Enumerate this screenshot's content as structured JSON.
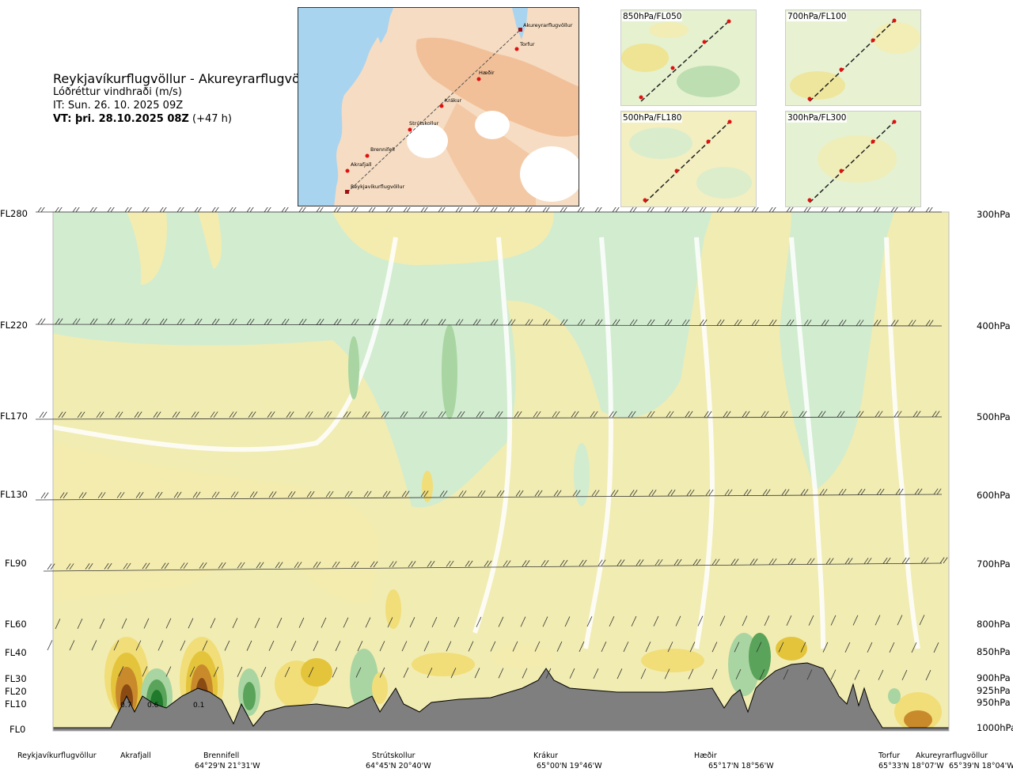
{
  "header": {
    "title": "Reykjavíkurflugvöllur - Akureyrarflugvöllur",
    "subtitle": "Lóðréttur vindhraði (m/s)",
    "issue_time": "IT: Sun. 26. 10. 2025 09Z",
    "valid_time_bold": "VT: þri. 28.10.2025 08Z",
    "valid_time_offset": "(+47 h)"
  },
  "route_map": {
    "places": [
      {
        "name": "Akureyrarflugvöllur",
        "lat": 65.66,
        "lon": -18.07
      },
      {
        "name": "Torfur",
        "lat": 65.55,
        "lon": -18.13
      },
      {
        "name": "Hæðir",
        "lat": 65.29,
        "lon": -18.93
      },
      {
        "name": "Krákur",
        "lat": 65.0,
        "lon": -19.77
      },
      {
        "name": "Strútskollur",
        "lat": 64.75,
        "lon": -20.67
      },
      {
        "name": "Brennifell",
        "lat": 64.49,
        "lon": -21.52
      },
      {
        "name": "Akrafjall",
        "lat": 64.34,
        "lon": -21.97
      },
      {
        "name": "Reykjavíkurflugvöllur",
        "lat": 64.13,
        "lon": -21.94
      }
    ]
  },
  "level_maps": [
    {
      "label": "850hPa/FL050"
    },
    {
      "label": "700hPa/FL100"
    },
    {
      "label": "500hPa/FL180"
    },
    {
      "label": "300hPa/FL300"
    }
  ],
  "cross_section": {
    "flight_levels": [
      "FL280",
      "FL220",
      "FL170",
      "FL130",
      "FL90",
      "FL60",
      "FL40",
      "FL30",
      "FL20",
      "FL10",
      "FL0"
    ],
    "pressure_levels": [
      "300hPa",
      "400hPa",
      "500hPa",
      "600hPa",
      "700hPa",
      "800hPa",
      "850hPa",
      "900hPa",
      "925hPa",
      "950hPa",
      "1000hPa"
    ],
    "contour_values": [
      "0.7",
      "0.6",
      "0.1"
    ],
    "waypoints": [
      {
        "name": "Reykjavíkurflugvöllur",
        "coord": ""
      },
      {
        "name": "Akrafjall",
        "coord": ""
      },
      {
        "name": "Brennifell",
        "coord": "64°29'N 21°31'W"
      },
      {
        "name": "Strútskollur",
        "coord": "64°45'N 20°40'W"
      },
      {
        "name": "Krákur",
        "coord": "65°00'N 19°46'W"
      },
      {
        "name": "Hæðir",
        "coord": "65°17'N 18°56'W"
      },
      {
        "name": "Torfur",
        "coord": "65°33'N 18°07'W"
      },
      {
        "name": "Akureyrarflugvöllur",
        "coord": "65°39'N 18°04'W"
      }
    ]
  },
  "colors": {
    "sink_weak": "#f4ecae",
    "sink_mod": "#f1de79",
    "sink_strong": "#e4c43a",
    "sink_stronger": "#c98a2c",
    "sink_max": "#8a4a14",
    "rise_weak": "#d2ecd0",
    "rise_mod": "#a9d5a2",
    "rise_strong": "#5aa35a",
    "rise_max": "#1f7a2c",
    "terrain": "#7f7f7f",
    "sea": "#a8d4f0",
    "land": "#f7d9bd"
  }
}
